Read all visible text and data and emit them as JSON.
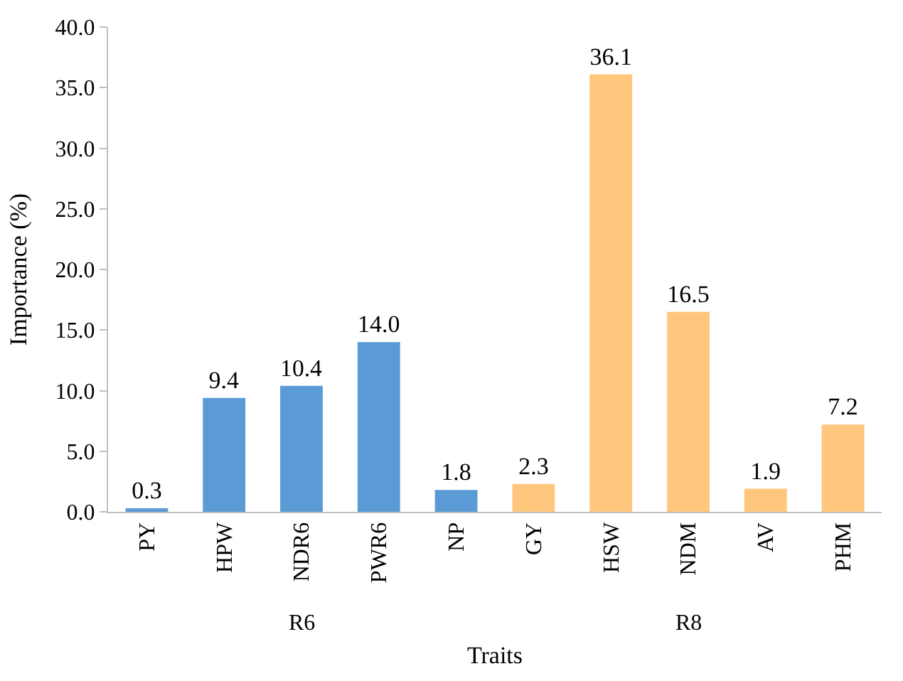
{
  "chart_data": {
    "type": "bar",
    "xlabel": "Traits",
    "ylabel": "Importance (%)",
    "categories": [
      "PY",
      "HPW",
      "NDR6",
      "PWR6",
      "NP",
      "GY",
      "HSW",
      "NDM",
      "AV",
      "PHM"
    ],
    "values": [
      0.3,
      9.4,
      10.4,
      14.0,
      1.8,
      2.3,
      36.1,
      16.5,
      1.9,
      7.2
    ],
    "value_labels": [
      "0.3",
      "9.4",
      "10.4",
      "14.0",
      "1.8",
      "2.3",
      "36.1",
      "16.5",
      "1.9",
      "7.2"
    ],
    "colors": [
      "#5b9bd5",
      "#5b9bd5",
      "#5b9bd5",
      "#5b9bd5",
      "#5b9bd5",
      "#ffc77d",
      "#ffc77d",
      "#ffc77d",
      "#ffc77d",
      "#ffc77d"
    ],
    "ylim": [
      0,
      40
    ],
    "yticks": [
      {
        "value": 0,
        "label": "0.0"
      },
      {
        "value": 5,
        "label": "5.0"
      },
      {
        "value": 10,
        "label": "10.0"
      },
      {
        "value": 15,
        "label": "15.0"
      },
      {
        "value": 20,
        "label": "20.0"
      },
      {
        "value": 25,
        "label": "25.0"
      },
      {
        "value": 30,
        "label": "30.0"
      },
      {
        "value": 35,
        "label": "35.0"
      },
      {
        "value": 40,
        "label": "40.0"
      }
    ],
    "annotations": [
      "R6",
      "R8"
    ],
    "legend": false
  }
}
